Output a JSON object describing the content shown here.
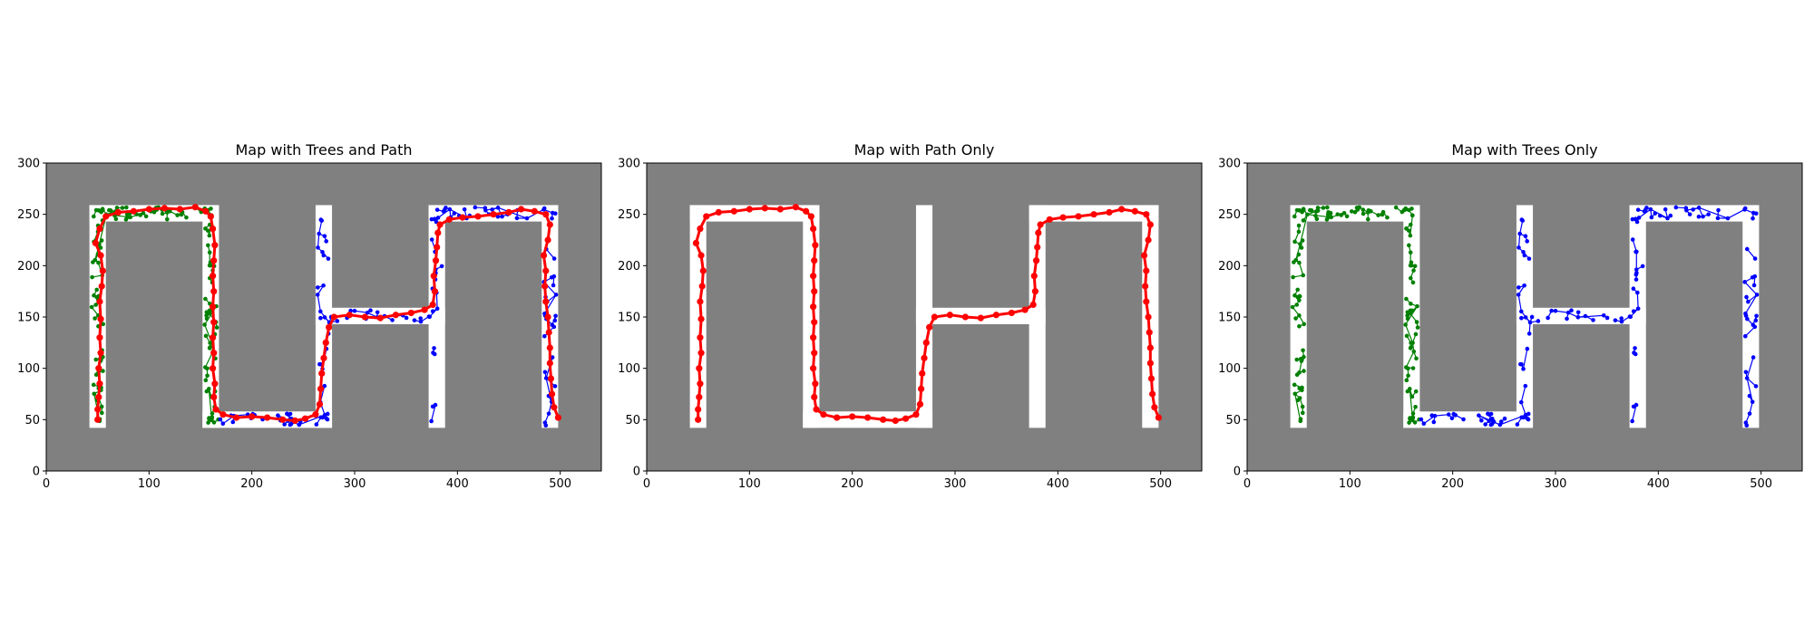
{
  "colors": {
    "background": "#808080",
    "free_space": "#ffffff",
    "path": "#ff0000",
    "tree_green": "#008000",
    "tree_blue": "#0000ff"
  },
  "chart_data": [
    {
      "type": "line",
      "title": "Map with Trees and Path",
      "xlim": [
        0,
        540
      ],
      "ylim": [
        0,
        300
      ],
      "xticks": [
        "0",
        "100",
        "200",
        "300",
        "400",
        "500"
      ],
      "yticks": [
        "0",
        "50",
        "100",
        "150",
        "200",
        "250",
        "300"
      ],
      "show_trees": true,
      "show_path": true
    },
    {
      "type": "line",
      "title": "Map with Path Only",
      "xlim": [
        0,
        540
      ],
      "ylim": [
        0,
        300
      ],
      "xticks": [
        "0",
        "100",
        "200",
        "300",
        "400",
        "500"
      ],
      "yticks": [
        "0",
        "50",
        "100",
        "150",
        "200",
        "250",
        "300"
      ],
      "show_trees": false,
      "show_path": true
    },
    {
      "type": "line",
      "title": "Map with Trees Only",
      "xlim": [
        0,
        540
      ],
      "ylim": [
        0,
        300
      ],
      "xticks": [
        "0",
        "100",
        "200",
        "300",
        "400",
        "500"
      ],
      "yticks": [
        "0",
        "50",
        "100",
        "150",
        "200",
        "250",
        "300"
      ],
      "show_trees": true,
      "show_path": false
    }
  ],
  "map": {
    "free_rects": [
      {
        "x": [
          42,
          58
        ],
        "y": [
          42,
          259
        ]
      },
      {
        "x": [
          42,
          168
        ],
        "y": [
          243,
          259
        ]
      },
      {
        "x": [
          152,
          168
        ],
        "y": [
          42,
          259
        ]
      },
      {
        "x": [
          152,
          278
        ],
        "y": [
          42,
          58
        ]
      },
      {
        "x": [
          262,
          278
        ],
        "y": [
          42,
          259
        ]
      },
      {
        "x": [
          262,
          388
        ],
        "y": [
          143,
          159
        ]
      },
      {
        "x": [
          372,
          388
        ],
        "y": [
          42,
          259
        ]
      },
      {
        "x": [
          372,
          498
        ],
        "y": [
          243,
          259
        ]
      },
      {
        "x": [
          482,
          498
        ],
        "y": [
          42,
          259
        ]
      }
    ]
  },
  "path": {
    "points": [
      [
        50,
        50
      ],
      [
        50,
        60
      ],
      [
        51,
        72
      ],
      [
        52,
        85
      ],
      [
        51,
        100
      ],
      [
        53,
        115
      ],
      [
        52,
        130
      ],
      [
        53,
        148
      ],
      [
        52,
        165
      ],
      [
        54,
        180
      ],
      [
        55,
        195
      ],
      [
        53,
        210
      ],
      [
        48,
        222
      ],
      [
        52,
        236
      ],
      [
        58,
        248
      ],
      [
        70,
        252
      ],
      [
        85,
        253
      ],
      [
        100,
        255
      ],
      [
        115,
        256
      ],
      [
        130,
        255
      ],
      [
        145,
        257
      ],
      [
        155,
        253
      ],
      [
        160,
        248
      ],
      [
        162,
        236
      ],
      [
        164,
        220
      ],
      [
        163,
        205
      ],
      [
        162,
        190
      ],
      [
        163,
        175
      ],
      [
        162,
        160
      ],
      [
        163,
        145
      ],
      [
        162,
        130
      ],
      [
        163,
        115
      ],
      [
        162,
        100
      ],
      [
        164,
        85
      ],
      [
        163,
        72
      ],
      [
        165,
        60
      ],
      [
        172,
        55
      ],
      [
        185,
        52
      ],
      [
        200,
        53
      ],
      [
        215,
        52
      ],
      [
        230,
        50
      ],
      [
        242,
        49
      ],
      [
        252,
        51
      ],
      [
        262,
        55
      ],
      [
        266,
        65
      ],
      [
        267,
        80
      ],
      [
        268,
        95
      ],
      [
        270,
        110
      ],
      [
        272,
        125
      ],
      [
        275,
        140
      ],
      [
        280,
        150
      ],
      [
        295,
        152
      ],
      [
        310,
        150
      ],
      [
        325,
        149
      ],
      [
        340,
        152
      ],
      [
        355,
        154
      ],
      [
        368,
        157
      ],
      [
        376,
        162
      ],
      [
        378,
        175
      ],
      [
        377,
        190
      ],
      [
        379,
        205
      ],
      [
        380,
        218
      ],
      [
        381,
        232
      ],
      [
        383,
        240
      ],
      [
        392,
        245
      ],
      [
        405,
        247
      ],
      [
        420,
        248
      ],
      [
        435,
        250
      ],
      [
        450,
        252
      ],
      [
        462,
        255
      ],
      [
        475,
        253
      ],
      [
        486,
        250
      ],
      [
        490,
        240
      ],
      [
        488,
        225
      ],
      [
        484,
        210
      ],
      [
        486,
        195
      ],
      [
        485,
        180
      ],
      [
        486,
        165
      ],
      [
        488,
        150
      ],
      [
        489,
        135
      ],
      [
        490,
        120
      ],
      [
        490,
        105
      ],
      [
        491,
        90
      ],
      [
        492,
        75
      ],
      [
        494,
        62
      ],
      [
        498,
        52
      ]
    ],
    "rows": [
      0,
      1
    ]
  },
  "trees": [
    {
      "color_key": "tree_green",
      "rows": [
        0,
        2
      ],
      "x_range": [
        40,
        168
      ],
      "exclude_x": [
        58,
        152
      ],
      "exclude_y": [
        0,
        240
      ]
    },
    {
      "color_key": "tree_blue",
      "rows": [
        0,
        2
      ],
      "x_range": [
        168,
        500
      ],
      "exclude_x": [
        0,
        0
      ],
      "exclude_y": [
        0,
        0
      ]
    }
  ]
}
